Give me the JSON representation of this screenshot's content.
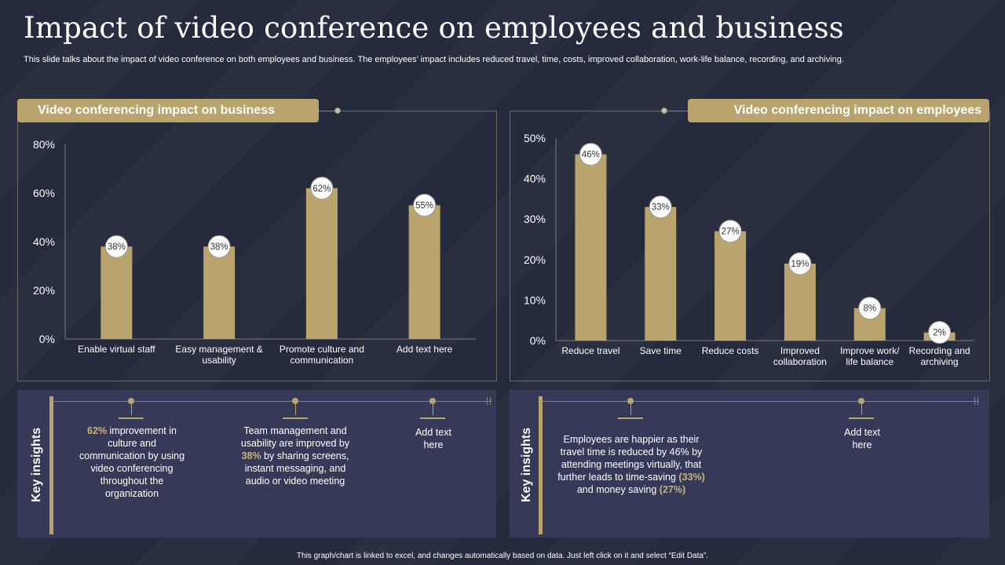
{
  "page": {
    "title": "Impact of video conference on employees and business",
    "subtitle": "This slide talks about the impact of video conference on both employees and business. The employees’ impact includes reduced travel, time, costs, improved collaboration, work-life balance, recording, and archiving.",
    "footer": "This graph/chart is linked to excel, and changes automatically based on data. Just left click on it and select “Edit Data”."
  },
  "colors": {
    "bar": "#b9a46e",
    "accent": "#c9b37a",
    "background": "#252a3c",
    "insight_bg": "#363a58"
  },
  "chart_data": [
    {
      "type": "bar",
      "title": "Video conferencing impact on business",
      "categories": [
        "Enable virtual staff",
        "Easy management & usability",
        "Promote culture and communication",
        "Add text here"
      ],
      "category_lines": [
        [
          "Enable virtual staff"
        ],
        [
          "Easy management &",
          "usability"
        ],
        [
          "Promote culture and",
          "communication"
        ],
        [
          "Add text here"
        ]
      ],
      "values": [
        38,
        38,
        62,
        55
      ],
      "data_labels": [
        "38%",
        "38%",
        "62%",
        "55%"
      ],
      "ylim": [
        0,
        80
      ],
      "yticks": [
        0,
        20,
        40,
        60,
        80
      ],
      "ytick_labels": [
        "0%",
        "20%",
        "40%",
        "60%",
        "80%"
      ],
      "xlabel": "",
      "ylabel": ""
    },
    {
      "type": "bar",
      "title": "Video conferencing impact on employees",
      "categories": [
        "Reduce travel",
        "Save time",
        "Reduce costs",
        "Improved collaboration",
        "Improve work/ life balance",
        "Recording and archiving"
      ],
      "category_lines": [
        [
          "Reduce travel"
        ],
        [
          "Save time"
        ],
        [
          "Reduce costs"
        ],
        [
          "Improved",
          "collaboration"
        ],
        [
          "Improve work/",
          "life balance"
        ],
        [
          "Recording and",
          "archiving"
        ]
      ],
      "values": [
        46,
        33,
        27,
        19,
        8,
        2
      ],
      "data_labels": [
        "46%",
        "33%",
        "27%",
        "19%",
        "8%",
        "2%"
      ],
      "ylim": [
        0,
        50
      ],
      "yticks": [
        0,
        10,
        20,
        30,
        40,
        50
      ],
      "ytick_labels": [
        "0%",
        "10%",
        "20%",
        "30%",
        "40%",
        "50%"
      ],
      "xlabel": "",
      "ylabel": ""
    }
  ],
  "insights": {
    "label": "Key insights",
    "left": {
      "item1": {
        "highlight": "62%",
        "text": " improvement in culture and communication by using video conferencing throughout the organization"
      },
      "item2": {
        "before": "Team management and usability are improved by ",
        "highlight": "38%",
        "after": " by sharing screens, instant messaging, and audio or video  meeting"
      },
      "item3": {
        "text": "Add text here"
      }
    },
    "right": {
      "item1": {
        "before": "Employees are happier as their travel time is reduced by 46% by attending meetings virtually, that further leads to time-saving ",
        "highlight1": "(33%)",
        "middle": " and money saving ",
        "highlight2": "(27%)"
      },
      "item2": {
        "text": "Add text here"
      }
    }
  }
}
